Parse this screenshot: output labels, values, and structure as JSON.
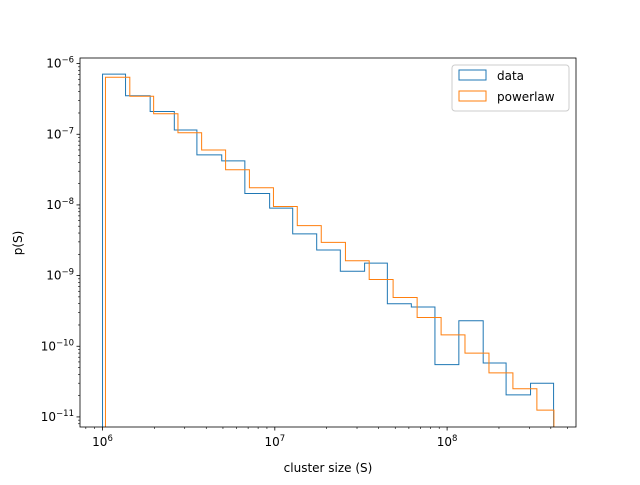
{
  "chart_data": {
    "type": "histogram",
    "xlabel": "cluster size (S)",
    "ylabel": "p(S)",
    "xscale": "log",
    "yscale": "log",
    "xlim": [
      740000,
      560000000
    ],
    "ylim": [
      7.2e-12,
      1.2e-06
    ],
    "grid": false,
    "legend_position": "top-right",
    "x_ticks": [
      {
        "value": 1000000,
        "mantissa": "10",
        "exponent": "6"
      },
      {
        "value": 10000000,
        "mantissa": "10",
        "exponent": "7"
      },
      {
        "value": 100000000,
        "mantissa": "10",
        "exponent": "8"
      }
    ],
    "y_ticks": [
      {
        "value": 1e-11,
        "mantissa": "10",
        "exponent": "−11"
      },
      {
        "value": 1e-10,
        "mantissa": "10",
        "exponent": "−10"
      },
      {
        "value": 1e-09,
        "mantissa": "10",
        "exponent": "−9"
      },
      {
        "value": 1e-08,
        "mantissa": "10",
        "exponent": "−8"
      },
      {
        "value": 1e-07,
        "mantissa": "10",
        "exponent": "−7"
      },
      {
        "value": 1e-06,
        "mantissa": "10",
        "exponent": "−6"
      }
    ],
    "series": [
      {
        "name": "data",
        "color": "#1f77b4",
        "bin_edges": [
          1000000,
          1360000,
          1890000,
          2610000,
          3530000,
          4920000,
          6700000,
          9330000,
          12700000,
          17500000,
          24000000,
          33200000,
          45000000,
          62000000,
          85000000,
          117000000,
          162000000,
          220000000,
          305000000,
          415000000
        ],
        "values": [
          7.1e-07,
          3.5e-07,
          2.1e-07,
          1.15e-07,
          5.1e-08,
          4.2e-08,
          1.45e-08,
          9e-09,
          3.9e-09,
          2.3e-09,
          1.15e-09,
          1.5e-09,
          4e-10,
          3.6e-10,
          5.5e-11,
          2.3e-10,
          5.8e-11,
          2.05e-11,
          3e-11
        ]
      },
      {
        "name": "powerlaw",
        "color": "#ff7f0e",
        "bin_edges": [
          1040000,
          1440000,
          1980000,
          2740000,
          3760000,
          5180000,
          7120000,
          9820000,
          13500000,
          18600000,
          25700000,
          35300000,
          48600000,
          67000000,
          92300000,
          127000000,
          175000000,
          241000000,
          332000000,
          417000000
        ],
        "values": [
          6.4e-07,
          3.45e-07,
          1.95e-07,
          1.05e-07,
          6e-08,
          3.15e-08,
          1.75e-08,
          9.5e-09,
          5.1e-09,
          2.95e-09,
          1.62e-09,
          8.8e-10,
          4.9e-10,
          2.55e-10,
          1.45e-10,
          8e-11,
          4.2e-11,
          2.5e-11,
          1.25e-11
        ]
      }
    ]
  }
}
